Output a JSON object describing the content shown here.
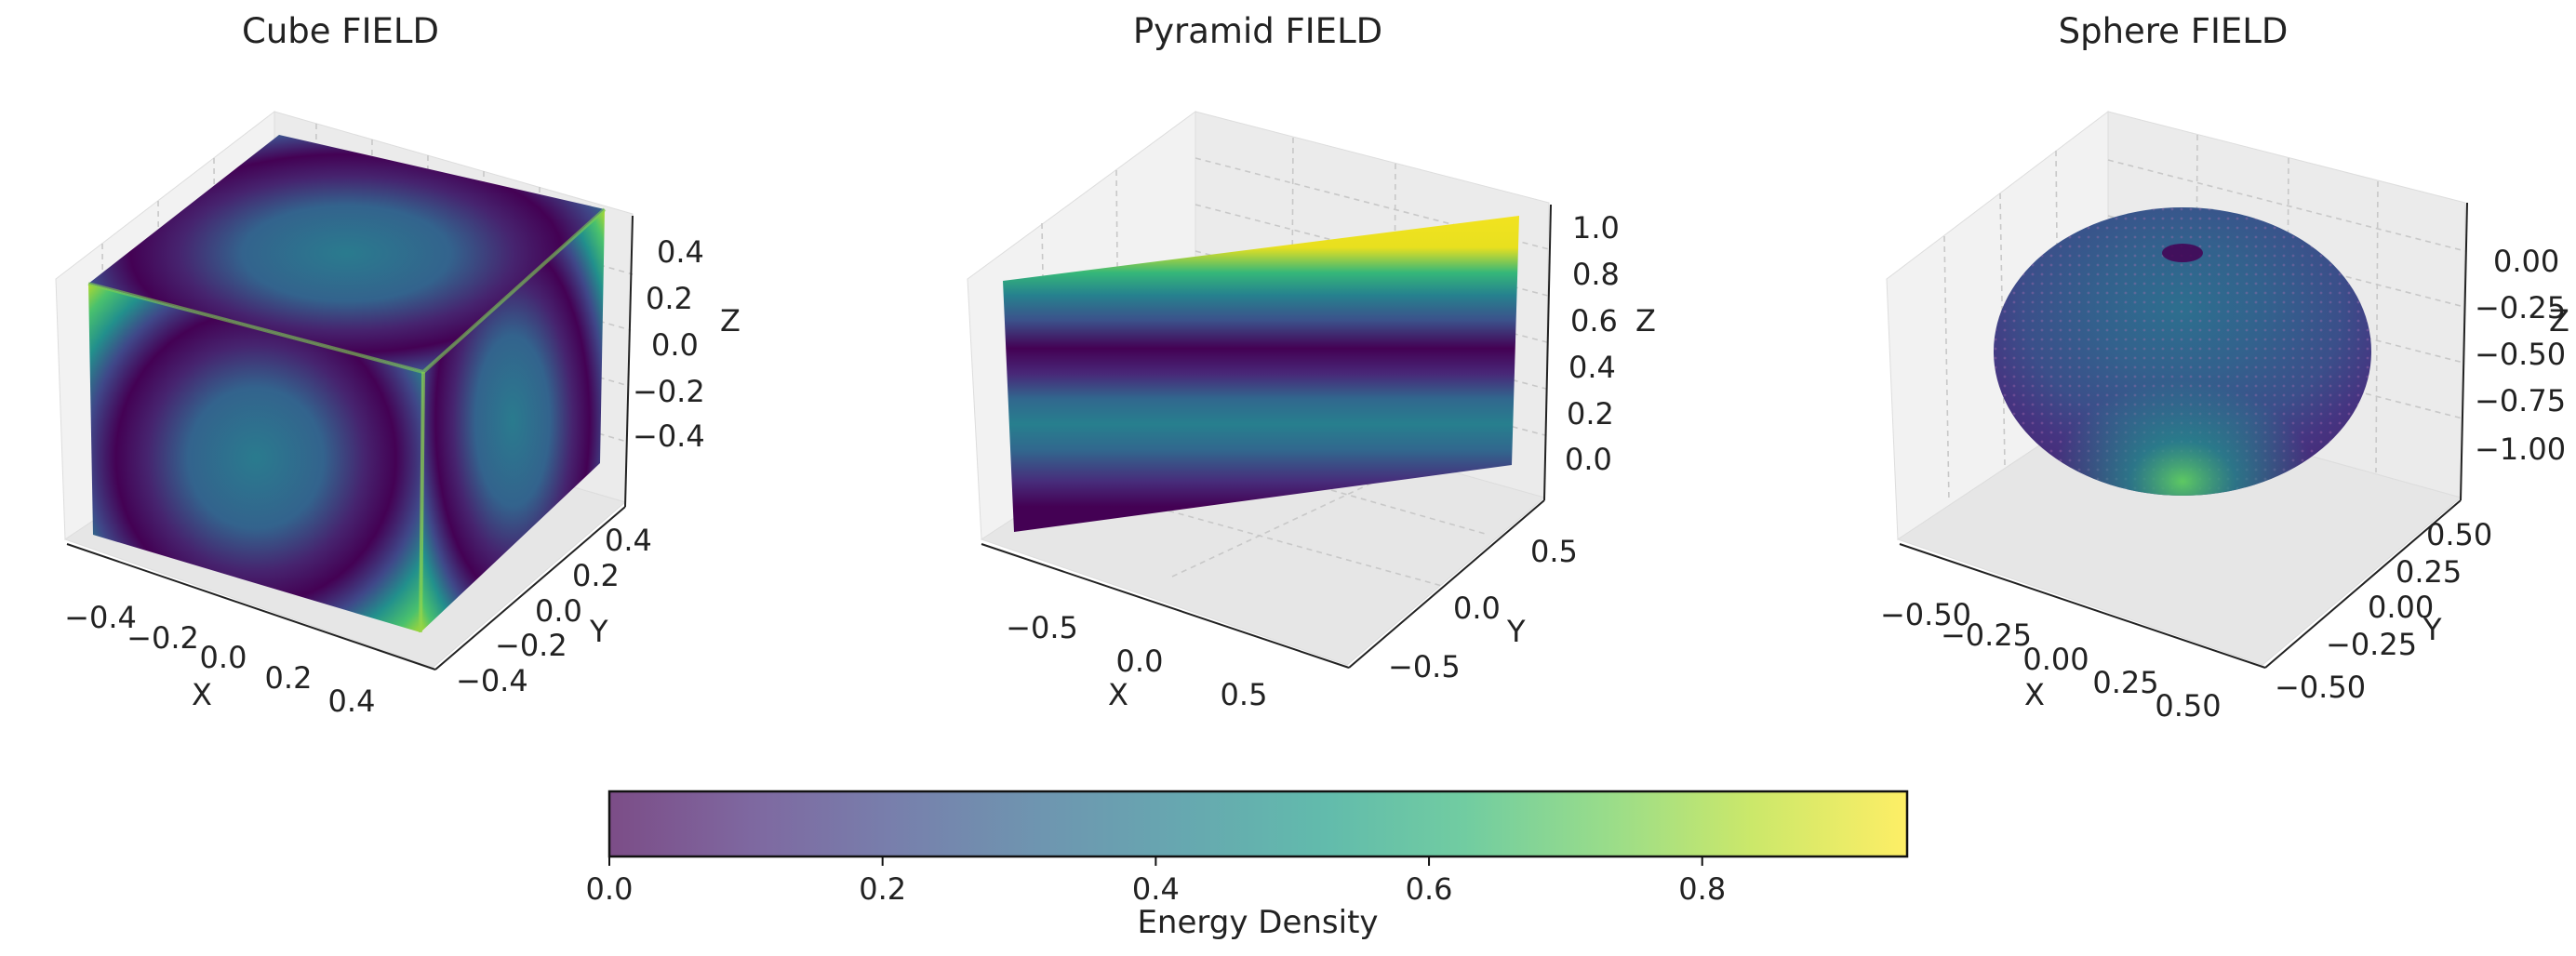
{
  "chart_data": [
    {
      "type": "scatter3d",
      "title": "Cube FIELD",
      "shape": "cube",
      "xlabel": "X",
      "ylabel": "Y",
      "zlabel": "Z",
      "xlim": [
        -0.55,
        0.55
      ],
      "ylim": [
        -0.55,
        0.55
      ],
      "zlim": [
        -0.55,
        0.55
      ],
      "xticks": [
        "−0.4",
        "−0.2",
        "0.0",
        "0.2",
        "0.4"
      ],
      "yticks": [
        "−0.4",
        "−0.2",
        "0.0",
        "0.2",
        "0.4"
      ],
      "zticks": [
        "0.4",
        "0.2",
        "0.0",
        "−0.2",
        "−0.4"
      ],
      "grid": true
    },
    {
      "type": "scatter3d",
      "title": "Pyramid FIELD",
      "shape": "plane",
      "xlabel": "X",
      "ylabel": "Y",
      "zlabel": "Z",
      "xlim": [
        -0.9,
        0.9
      ],
      "ylim": [
        -0.9,
        0.9
      ],
      "zlim": [
        0,
        1
      ],
      "xticks": [
        "−0.5",
        "0.0",
        "0.5"
      ],
      "yticks": [
        "−0.5",
        "0.0",
        "0.5"
      ],
      "zticks": [
        "1.0",
        "0.8",
        "0.6",
        "0.4",
        "0.2",
        "0.0"
      ],
      "grid": true
    },
    {
      "type": "scatter3d",
      "title": "Sphere FIELD",
      "shape": "sphere",
      "xlabel": "X",
      "ylabel": "Y",
      "zlabel": "Z",
      "xlim": [
        -0.6,
        0.6
      ],
      "ylim": [
        -0.6,
        0.6
      ],
      "zlim": [
        -1.05,
        0.15
      ],
      "xticks": [
        "−0.50",
        "−0.25",
        "0.00",
        "0.25",
        "0.50"
      ],
      "yticks": [
        "0.50",
        "0.25",
        "0.00",
        "−0.25",
        "−0.50"
      ],
      "zticks": [
        "0.00",
        "−0.25",
        "−0.50",
        "−0.75",
        "−1.00"
      ],
      "grid": true
    }
  ],
  "colorbar": {
    "label": "Energy Density",
    "colormap": "viridis",
    "range": [
      0,
      0.95
    ],
    "ticks": [
      "0.0",
      "0.2",
      "0.4",
      "0.6",
      "0.8"
    ],
    "alpha": 0.7
  },
  "colors": {
    "viridis_stops": [
      "#440154",
      "#482878",
      "#3e4989",
      "#31688e",
      "#26828e",
      "#1f9e89",
      "#35b779",
      "#6ece58",
      "#b5de2b",
      "#fde725"
    ]
  }
}
